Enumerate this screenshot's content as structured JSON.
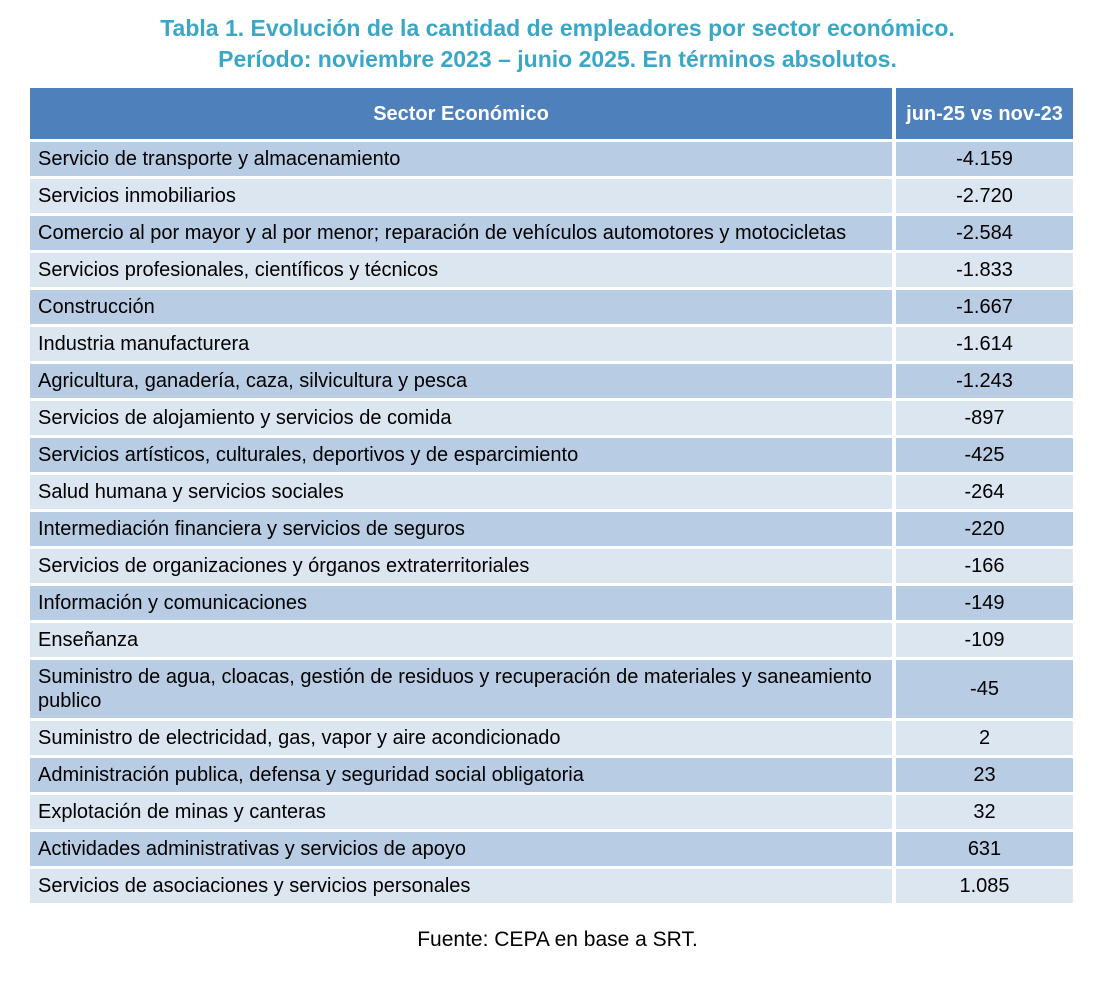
{
  "title": {
    "line1": "Tabla 1. Evolución de la cantidad de empleadores por sector económico.",
    "line2": "Período: noviembre 2023 – junio 2025. En términos absolutos."
  },
  "table": {
    "headers": [
      "Sector Económico",
      "jun-25 vs nov-23"
    ],
    "rows": [
      {
        "sector": "Servicio de transporte y almacenamiento",
        "value": "-4.159"
      },
      {
        "sector": "Servicios inmobiliarios",
        "value": "-2.720"
      },
      {
        "sector": "Comercio al por mayor y al por menor; reparación de vehículos automotores y motocicletas",
        "value": "-2.584"
      },
      {
        "sector": "Servicios profesionales, científicos y técnicos",
        "value": "-1.833"
      },
      {
        "sector": "Construcción",
        "value": "-1.667"
      },
      {
        "sector": "Industria manufacturera",
        "value": "-1.614"
      },
      {
        "sector": "Agricultura, ganadería, caza, silvicultura y pesca",
        "value": "-1.243"
      },
      {
        "sector": "Servicios de alojamiento y servicios de comida",
        "value": "-897"
      },
      {
        "sector": "Servicios artísticos, culturales, deportivos y de esparcimiento",
        "value": "-425"
      },
      {
        "sector": "Salud humana y servicios sociales",
        "value": "-264"
      },
      {
        "sector": "Intermediación financiera y servicios de seguros",
        "value": "-220"
      },
      {
        "sector": "Servicios de organizaciones y órganos extraterritoriales",
        "value": "-166"
      },
      {
        "sector": "Información y comunicaciones",
        "value": "-149"
      },
      {
        "sector": "Enseñanza",
        "value": "-109"
      },
      {
        "sector": "Suministro de agua, cloacas, gestión de residuos y recuperación de materiales y saneamiento publico",
        "value": "-45"
      },
      {
        "sector": "Suministro de electricidad, gas, vapor y aire acondicionado",
        "value": "2"
      },
      {
        "sector": "Administración publica, defensa y seguridad social obligatoria",
        "value": "23"
      },
      {
        "sector": "Explotación de minas y canteras",
        "value": "32"
      },
      {
        "sector": "Actividades administrativas y servicios de apoyo",
        "value": "631"
      },
      {
        "sector": "Servicios de asociaciones y servicios personales",
        "value": "1.085"
      }
    ]
  },
  "footer": {
    "source": "Fuente: CEPA en base a SRT."
  },
  "colors": {
    "title_text": "#3BA7C6",
    "header_bg": "#4E81BC",
    "header_text": "#FFFFFF",
    "row_band_dark": "#B8CCE4",
    "row_band_light": "#DCE6F1",
    "cell_text": "#000000"
  },
  "chart_data": {
    "type": "table",
    "title": "Tabla 1. Evolución de la cantidad de empleadores por sector económico. Período: noviembre 2023 – junio 2025. En términos absolutos.",
    "columns": [
      "Sector Económico",
      "jun-25 vs nov-23"
    ],
    "categories": [
      "Servicio de transporte y almacenamiento",
      "Servicios inmobiliarios",
      "Comercio al por mayor y al por menor; reparación de vehículos automotores y motocicletas",
      "Servicios profesionales, científicos y técnicos",
      "Construcción",
      "Industria manufacturera",
      "Agricultura, ganadería, caza, silvicultura y pesca",
      "Servicios de alojamiento y servicios de comida",
      "Servicios artísticos, culturales, deportivos y de esparcimiento",
      "Salud humana y servicios sociales",
      "Intermediación financiera y servicios de seguros",
      "Servicios de organizaciones y órganos extraterritoriales",
      "Información y comunicaciones",
      "Enseñanza",
      "Suministro de agua, cloacas, gestión de residuos y recuperación de materiales y saneamiento publico",
      "Suministro de electricidad, gas, vapor y aire acondicionado",
      "Administración publica, defensa y seguridad social obligatoria",
      "Explotación de minas y canteras",
      "Actividades administrativas y servicios de apoyo",
      "Servicios de asociaciones y servicios personales"
    ],
    "values": [
      -4159,
      -2720,
      -2584,
      -1833,
      -1667,
      -1614,
      -1243,
      -897,
      -425,
      -264,
      -220,
      -166,
      -149,
      -109,
      -45,
      2,
      23,
      32,
      631,
      1085
    ],
    "values_display": [
      "-4.159",
      "-2.720",
      "-2.584",
      "-1.833",
      "-1.667",
      "-1.614",
      "-1.243",
      "-897",
      "-425",
      "-264",
      "-220",
      "-166",
      "-149",
      "-109",
      "-45",
      "2",
      "23",
      "32",
      "631",
      "1.085"
    ],
    "source": "Fuente: CEPA en base a SRT."
  }
}
